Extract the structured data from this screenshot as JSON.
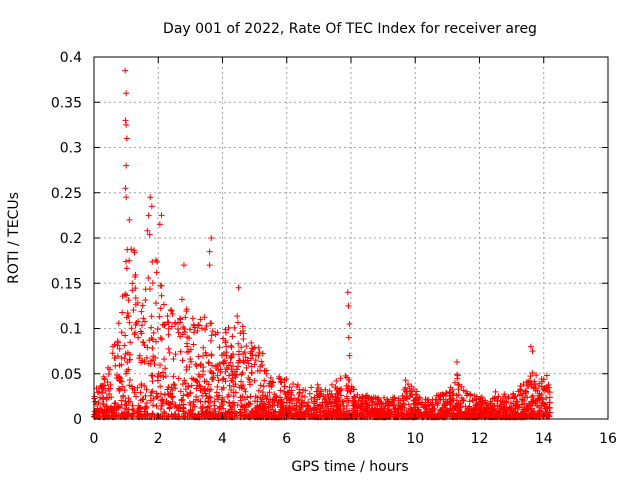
{
  "chart_data": {
    "type": "scatter",
    "title": "Day 001 of 2022, Rate Of TEC Index for receiver areg",
    "xlabel": "GPS time / hours",
    "ylabel": "ROTI / TECUs",
    "xlim": [
      0,
      16
    ],
    "ylim": [
      0,
      0.4
    ],
    "xticks": [
      0,
      2,
      4,
      6,
      8,
      10,
      12,
      14,
      16
    ],
    "yticks": [
      0,
      0.05,
      0.1,
      0.15,
      0.2,
      0.25,
      0.3,
      0.35,
      0.4
    ],
    "xtick_labels": [
      "0",
      "2",
      "4",
      "6",
      "8",
      "10",
      "12",
      "14",
      "16"
    ],
    "ytick_labels": [
      "0",
      "0.05",
      "0.1",
      "0.15",
      "0.2",
      "0.25",
      "0.3",
      "0.35",
      "0.4"
    ],
    "grid": true,
    "marker": "+",
    "color": "#ff0000",
    "envelope": {
      "description": "approximate upper envelope of the dense point cloud (data units)",
      "x": [
        0.0,
        0.3,
        0.5,
        0.7,
        0.9,
        1.0,
        1.1,
        1.3,
        1.5,
        1.7,
        1.9,
        2.1,
        2.3,
        2.5,
        2.7,
        3.0,
        3.3,
        3.5,
        3.8,
        4.0,
        4.3,
        4.5,
        4.8,
        5.0,
        5.3,
        5.5,
        5.8,
        6.0,
        6.3,
        6.6,
        7.0,
        7.3,
        7.6,
        7.9,
        8.2,
        8.6,
        9.0,
        9.5,
        9.8,
        10.2,
        10.6,
        11.0,
        11.3,
        11.6,
        12.0,
        12.5,
        13.0,
        13.4,
        13.6,
        13.8,
        14.0,
        14.2
      ],
      "y": [
        0.03,
        0.05,
        0.07,
        0.1,
        0.14,
        0.19,
        0.21,
        0.18,
        0.14,
        0.23,
        0.19,
        0.15,
        0.13,
        0.12,
        0.14,
        0.12,
        0.11,
        0.12,
        0.1,
        0.11,
        0.1,
        0.12,
        0.09,
        0.08,
        0.08,
        0.06,
        0.05,
        0.045,
        0.04,
        0.035,
        0.04,
        0.035,
        0.045,
        0.05,
        0.03,
        0.025,
        0.025,
        0.025,
        0.04,
        0.025,
        0.025,
        0.03,
        0.05,
        0.03,
        0.025,
        0.025,
        0.03,
        0.04,
        0.06,
        0.05,
        0.045,
        0.04
      ]
    },
    "notable_points": [
      {
        "x": 0.97,
        "y": 0.385
      },
      {
        "x": 1.0,
        "y": 0.36
      },
      {
        "x": 0.98,
        "y": 0.33
      },
      {
        "x": 1.0,
        "y": 0.325
      },
      {
        "x": 1.02,
        "y": 0.31
      },
      {
        "x": 1.0,
        "y": 0.28
      },
      {
        "x": 0.98,
        "y": 0.255
      },
      {
        "x": 1.0,
        "y": 0.245
      },
      {
        "x": 1.1,
        "y": 0.22
      },
      {
        "x": 1.75,
        "y": 0.245
      },
      {
        "x": 1.8,
        "y": 0.235
      },
      {
        "x": 1.7,
        "y": 0.225
      },
      {
        "x": 2.1,
        "y": 0.225
      },
      {
        "x": 2.05,
        "y": 0.215
      },
      {
        "x": 3.65,
        "y": 0.2
      },
      {
        "x": 3.6,
        "y": 0.185
      },
      {
        "x": 2.8,
        "y": 0.17
      },
      {
        "x": 3.6,
        "y": 0.17
      },
      {
        "x": 4.5,
        "y": 0.145
      },
      {
        "x": 7.9,
        "y": 0.14
      },
      {
        "x": 7.92,
        "y": 0.125
      },
      {
        "x": 7.95,
        "y": 0.105
      },
      {
        "x": 7.93,
        "y": 0.09
      },
      {
        "x": 7.95,
        "y": 0.07
      },
      {
        "x": 11.3,
        "y": 0.063
      },
      {
        "x": 13.6,
        "y": 0.08
      },
      {
        "x": 13.65,
        "y": 0.075
      },
      {
        "x": 9.7,
        "y": 0.043
      },
      {
        "x": 14.1,
        "y": 0.048
      },
      {
        "x": 12.5,
        "y": 0.03
      }
    ]
  }
}
